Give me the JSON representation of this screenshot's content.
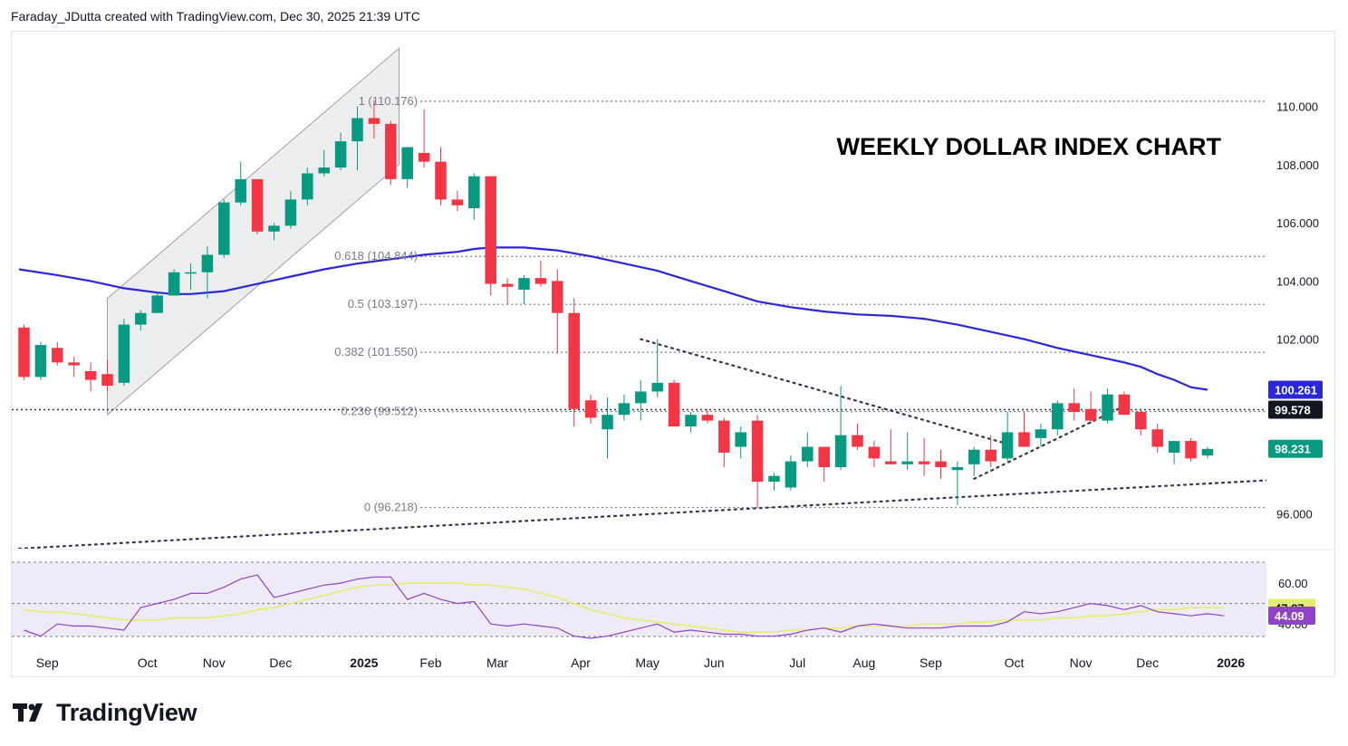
{
  "header": {
    "attribution": "Faraday_JDutta created with TradingView.com, Dec 30, 2025 21:39 UTC"
  },
  "brand": {
    "name": "TradingView",
    "logo_icon": "tradingview-logo-icon"
  },
  "colors": {
    "up": "#089981",
    "down": "#f23645",
    "ma": "#2b26d6",
    "rsi": "#8e44c4",
    "rsi_ma": "#e3ef6a",
    "rsi_band": "#efeaf8",
    "dotted": "#343651",
    "channel": "#e6e7ea"
  },
  "chart_data": [
    {
      "type": "candlestick",
      "title": "WEEKLY DOLLAR INDEX CHART",
      "timeframe": "weekly",
      "ylim": [
        94.8,
        111.2
      ],
      "y_ticks": [
        "110.000",
        "108.000",
        "106.000",
        "104.000",
        "102.000",
        "96.000"
      ],
      "x_ticks": [
        {
          "label": "Sep",
          "bar": 1.4,
          "bold": false
        },
        {
          "label": "Oct",
          "bar": 7.4,
          "bold": false
        },
        {
          "label": "Nov",
          "bar": 11.4,
          "bold": false
        },
        {
          "label": "Dec",
          "bar": 15.4,
          "bold": false
        },
        {
          "label": "2025",
          "bar": 20.4,
          "bold": true
        },
        {
          "label": "Feb",
          "bar": 24.4,
          "bold": false
        },
        {
          "label": "Mar",
          "bar": 28.4,
          "bold": false
        },
        {
          "label": "Apr",
          "bar": 33.4,
          "bold": false
        },
        {
          "label": "May",
          "bar": 37.4,
          "bold": false
        },
        {
          "label": "Jun",
          "bar": 41.4,
          "bold": false
        },
        {
          "label": "Jul",
          "bar": 46.4,
          "bold": false
        },
        {
          "label": "Aug",
          "bar": 50.4,
          "bold": false
        },
        {
          "label": "Sep",
          "bar": 54.4,
          "bold": false
        },
        {
          "label": "Oct",
          "bar": 59.4,
          "bold": false
        },
        {
          "label": "Nov",
          "bar": 63.4,
          "bold": false
        },
        {
          "label": "Dec",
          "bar": 67.4,
          "bold": false
        },
        {
          "label": "2026",
          "bar": 72.4,
          "bold": true
        }
      ],
      "candles": [
        {
          "o": 102.4,
          "h": 102.5,
          "l": 100.6,
          "c": 100.7
        },
        {
          "o": 100.7,
          "h": 101.9,
          "l": 100.6,
          "c": 101.8
        },
        {
          "o": 101.7,
          "h": 101.9,
          "l": 101.1,
          "c": 101.2
        },
        {
          "o": 101.2,
          "h": 101.4,
          "l": 100.7,
          "c": 101.1
        },
        {
          "o": 100.9,
          "h": 101.2,
          "l": 100.2,
          "c": 100.6
        },
        {
          "o": 100.8,
          "h": 101.3,
          "l": 100.2,
          "c": 100.4
        },
        {
          "o": 100.5,
          "h": 102.7,
          "l": 100.4,
          "c": 102.5
        },
        {
          "o": 102.5,
          "h": 103.0,
          "l": 102.3,
          "c": 102.9
        },
        {
          "o": 102.9,
          "h": 103.6,
          "l": 102.9,
          "c": 103.5
        },
        {
          "o": 103.5,
          "h": 104.4,
          "l": 103.5,
          "c": 104.3
        },
        {
          "o": 104.3,
          "h": 104.6,
          "l": 103.7,
          "c": 104.3
        },
        {
          "o": 104.3,
          "h": 105.2,
          "l": 103.4,
          "c": 104.9
        },
        {
          "o": 104.9,
          "h": 106.8,
          "l": 104.8,
          "c": 106.7
        },
        {
          "o": 106.7,
          "h": 108.1,
          "l": 106.6,
          "c": 107.5
        },
        {
          "o": 107.5,
          "h": 107.5,
          "l": 105.6,
          "c": 105.7
        },
        {
          "o": 105.7,
          "h": 106.0,
          "l": 105.4,
          "c": 105.9
        },
        {
          "o": 105.9,
          "h": 107.1,
          "l": 105.8,
          "c": 106.8
        },
        {
          "o": 106.8,
          "h": 107.9,
          "l": 106.6,
          "c": 107.7
        },
        {
          "o": 107.7,
          "h": 108.5,
          "l": 107.6,
          "c": 107.9
        },
        {
          "o": 107.9,
          "h": 109.1,
          "l": 107.8,
          "c": 108.8
        },
        {
          "o": 108.8,
          "h": 110.0,
          "l": 107.8,
          "c": 109.6
        },
        {
          "o": 109.6,
          "h": 110.2,
          "l": 108.9,
          "c": 109.4
        },
        {
          "o": 109.4,
          "h": 109.5,
          "l": 107.3,
          "c": 107.5
        },
        {
          "o": 107.5,
          "h": 108.6,
          "l": 107.2,
          "c": 108.6
        },
        {
          "o": 108.4,
          "h": 109.9,
          "l": 107.9,
          "c": 108.1
        },
        {
          "o": 108.1,
          "h": 108.6,
          "l": 106.6,
          "c": 106.8
        },
        {
          "o": 106.8,
          "h": 107.1,
          "l": 106.4,
          "c": 106.6
        },
        {
          "o": 106.5,
          "h": 107.7,
          "l": 106.1,
          "c": 107.6
        },
        {
          "o": 107.6,
          "h": 107.6,
          "l": 103.5,
          "c": 103.9
        },
        {
          "o": 103.9,
          "h": 104.1,
          "l": 103.2,
          "c": 103.8
        },
        {
          "o": 103.7,
          "h": 104.2,
          "l": 103.2,
          "c": 104.1
        },
        {
          "o": 104.1,
          "h": 104.7,
          "l": 103.8,
          "c": 103.9
        },
        {
          "o": 104.0,
          "h": 104.4,
          "l": 101.5,
          "c": 102.9
        },
        {
          "o": 102.9,
          "h": 103.4,
          "l": 99.0,
          "c": 99.6
        },
        {
          "o": 99.9,
          "h": 100.1,
          "l": 99.1,
          "c": 99.3
        },
        {
          "o": 98.9,
          "h": 100.0,
          "l": 97.9,
          "c": 99.4
        },
        {
          "o": 99.4,
          "h": 100.1,
          "l": 99.2,
          "c": 99.8
        },
        {
          "o": 99.8,
          "h": 100.6,
          "l": 99.2,
          "c": 100.2
        },
        {
          "o": 100.2,
          "h": 102.0,
          "l": 100.0,
          "c": 100.5
        },
        {
          "o": 100.5,
          "h": 100.6,
          "l": 99.0,
          "c": 99.0
        },
        {
          "o": 99.0,
          "h": 99.5,
          "l": 98.8,
          "c": 99.4
        },
        {
          "o": 99.4,
          "h": 99.6,
          "l": 99.1,
          "c": 99.2
        },
        {
          "o": 99.2,
          "h": 99.3,
          "l": 97.6,
          "c": 98.1
        },
        {
          "o": 98.3,
          "h": 99.0,
          "l": 97.9,
          "c": 98.8
        },
        {
          "o": 99.2,
          "h": 99.4,
          "l": 96.2,
          "c": 97.1
        },
        {
          "o": 97.1,
          "h": 97.4,
          "l": 96.8,
          "c": 97.3
        },
        {
          "o": 96.9,
          "h": 98.0,
          "l": 96.8,
          "c": 97.8
        },
        {
          "o": 97.8,
          "h": 98.8,
          "l": 97.6,
          "c": 98.3
        },
        {
          "o": 98.3,
          "h": 98.3,
          "l": 97.1,
          "c": 97.6
        },
        {
          "o": 97.6,
          "h": 100.4,
          "l": 97.5,
          "c": 98.7
        },
        {
          "o": 98.7,
          "h": 99.1,
          "l": 98.2,
          "c": 98.3
        },
        {
          "o": 98.3,
          "h": 98.5,
          "l": 97.6,
          "c": 97.9
        },
        {
          "o": 97.8,
          "h": 98.9,
          "l": 97.7,
          "c": 97.7
        },
        {
          "o": 97.7,
          "h": 98.8,
          "l": 97.5,
          "c": 97.8
        },
        {
          "o": 97.8,
          "h": 98.6,
          "l": 97.3,
          "c": 97.7
        },
        {
          "o": 97.8,
          "h": 98.2,
          "l": 97.2,
          "c": 97.6
        },
        {
          "o": 97.5,
          "h": 97.8,
          "l": 96.3,
          "c": 97.6
        },
        {
          "o": 97.7,
          "h": 98.3,
          "l": 97.3,
          "c": 98.2
        },
        {
          "o": 98.2,
          "h": 98.7,
          "l": 97.6,
          "c": 97.8
        },
        {
          "o": 97.9,
          "h": 99.5,
          "l": 97.8,
          "c": 98.8
        },
        {
          "o": 98.8,
          "h": 99.5,
          "l": 98.3,
          "c": 98.3
        },
        {
          "o": 98.6,
          "h": 99.1,
          "l": 98.3,
          "c": 98.9
        },
        {
          "o": 98.9,
          "h": 99.9,
          "l": 98.7,
          "c": 99.8
        },
        {
          "o": 99.8,
          "h": 100.3,
          "l": 99.2,
          "c": 99.5
        },
        {
          "o": 99.6,
          "h": 100.2,
          "l": 99.1,
          "c": 99.2
        },
        {
          "o": 99.2,
          "h": 100.3,
          "l": 99.1,
          "c": 100.1
        },
        {
          "o": 100.1,
          "h": 100.2,
          "l": 99.4,
          "c": 99.4
        },
        {
          "o": 99.5,
          "h": 99.6,
          "l": 98.7,
          "c": 98.9
        },
        {
          "o": 98.9,
          "h": 99.1,
          "l": 98.1,
          "c": 98.3
        },
        {
          "o": 98.1,
          "h": 98.5,
          "l": 97.7,
          "c": 98.5
        },
        {
          "o": 98.5,
          "h": 98.6,
          "l": 97.8,
          "c": 97.9
        },
        {
          "o": 98.0,
          "h": 98.3,
          "l": 97.9,
          "c": 98.23
        }
      ],
      "moving_average": [
        {
          "bar": -0.3,
          "v": 104.4
        },
        {
          "bar": 2,
          "v": 104.2
        },
        {
          "bar": 4,
          "v": 104.0
        },
        {
          "bar": 6,
          "v": 103.75
        },
        {
          "bar": 8,
          "v": 103.6
        },
        {
          "bar": 9,
          "v": 103.55
        },
        {
          "bar": 10,
          "v": 103.55
        },
        {
          "bar": 12,
          "v": 103.65
        },
        {
          "bar": 14,
          "v": 103.9
        },
        {
          "bar": 16,
          "v": 104.15
        },
        {
          "bar": 18,
          "v": 104.4
        },
        {
          "bar": 20,
          "v": 104.6
        },
        {
          "bar": 22,
          "v": 104.75
        },
        {
          "bar": 24,
          "v": 104.9
        },
        {
          "bar": 26,
          "v": 105.0
        },
        {
          "bar": 27,
          "v": 105.1
        },
        {
          "bar": 28,
          "v": 105.15
        },
        {
          "bar": 30,
          "v": 105.15
        },
        {
          "bar": 32,
          "v": 105.05
        },
        {
          "bar": 34,
          "v": 104.85
        },
        {
          "bar": 36,
          "v": 104.6
        },
        {
          "bar": 38,
          "v": 104.35
        },
        {
          "bar": 40,
          "v": 104.0
        },
        {
          "bar": 42,
          "v": 103.65
        },
        {
          "bar": 44,
          "v": 103.3
        },
        {
          "bar": 46,
          "v": 103.1
        },
        {
          "bar": 48,
          "v": 102.95
        },
        {
          "bar": 50,
          "v": 102.85
        },
        {
          "bar": 52,
          "v": 102.8
        },
        {
          "bar": 54,
          "v": 102.7
        },
        {
          "bar": 56,
          "v": 102.5
        },
        {
          "bar": 58,
          "v": 102.25
        },
        {
          "bar": 60,
          "v": 102.0
        },
        {
          "bar": 62,
          "v": 101.7
        },
        {
          "bar": 64,
          "v": 101.45
        },
        {
          "bar": 66,
          "v": 101.2
        },
        {
          "bar": 67,
          "v": 101.05
        },
        {
          "bar": 68,
          "v": 100.8
        },
        {
          "bar": 69,
          "v": 100.6
        },
        {
          "bar": 70,
          "v": 100.35
        },
        {
          "bar": 71,
          "v": 100.26
        }
      ],
      "fibonacci": [
        {
          "label": "1 (110.176)",
          "value": 110.176
        },
        {
          "label": "0.618 (104.844)",
          "value": 104.844
        },
        {
          "label": "0.5 (103.197)",
          "value": 103.197
        },
        {
          "label": "0.382 (101.550)",
          "value": 101.55
        },
        {
          "label": "0.236 (99.512)",
          "value": 99.512
        },
        {
          "label": "0 (96.218)",
          "value": 96.218
        }
      ],
      "fib_start_bar": 24,
      "horizontal_line": 99.578,
      "trendlines": [
        {
          "from": {
            "bar": 37,
            "v": 102.0
          },
          "to": {
            "bar": 59,
            "v": 98.4
          }
        },
        {
          "from": {
            "bar": 57,
            "v": 97.2
          },
          "to": {
            "bar": 66,
            "v": 99.7
          }
        },
        {
          "from": {
            "bar": -0.3,
            "v": 94.8
          },
          "to": {
            "bar": 76.2,
            "v": 97.2
          }
        }
      ],
      "channel": {
        "lower": [
          {
            "bar": 5,
            "v": 99.4
          },
          {
            "bar": 22.5,
            "v": 108.0
          }
        ],
        "upper": [
          {
            "bar": 5,
            "v": 103.4
          },
          {
            "bar": 22.5,
            "v": 112.0
          }
        ]
      },
      "price_labels": [
        {
          "text": "100.261",
          "value": 100.261,
          "bg": "#2b26d6",
          "fg": "#ffffff"
        },
        {
          "text": "99.578",
          "value": 99.578,
          "bg": "#131722",
          "fg": "#ffffff"
        },
        {
          "text": "98.231",
          "value": 98.231,
          "bg": "#089981",
          "fg": "#ffffff"
        }
      ]
    },
    {
      "type": "line",
      "name": "RSI",
      "ylim": [
        33,
        72
      ],
      "y_ticks": [
        "60.00",
        "40.00"
      ],
      "bands": [
        60,
        40
      ],
      "series": [
        {
          "values": [
            37,
            34,
            40,
            39,
            39,
            38,
            37,
            48,
            50,
            52,
            55,
            55,
            58,
            62,
            64,
            53,
            55,
            57,
            59,
            60,
            62,
            63,
            63,
            52,
            55,
            52,
            50,
            51,
            40,
            39,
            40,
            39,
            38,
            34,
            33,
            34,
            36,
            38,
            40,
            36,
            37,
            36,
            35,
            35,
            34,
            34,
            35,
            37,
            38,
            36,
            39,
            40,
            39,
            38,
            38,
            38,
            39,
            39,
            39,
            41,
            46,
            45,
            46,
            48,
            50,
            49,
            47,
            49,
            46,
            45,
            44,
            45,
            44
          ]
        },
        {
          "values": [
            47,
            46,
            46,
            45,
            44,
            43,
            42,
            42,
            42,
            43,
            43,
            43,
            44,
            45,
            47,
            48,
            50,
            52,
            54,
            56,
            58,
            59,
            59,
            60,
            60,
            60,
            60,
            59,
            59,
            58,
            57,
            55,
            53,
            50,
            47,
            45,
            43,
            42,
            41,
            40,
            39,
            38,
            37,
            36,
            36,
            36,
            37,
            37,
            38,
            38,
            39,
            39,
            39,
            39,
            40,
            40,
            40,
            41,
            41,
            42,
            42,
            42,
            43,
            43,
            44,
            44,
            45,
            46,
            47,
            47,
            48,
            48,
            48
          ]
        }
      ],
      "value_labels": [
        {
          "text": "47.87",
          "value": 47.87,
          "bg": "#e3ef6a",
          "fg": "#131722"
        },
        {
          "text": "44.09",
          "value": 44.09,
          "bg": "#8e44c4",
          "fg": "#ffffff"
        }
      ]
    }
  ]
}
